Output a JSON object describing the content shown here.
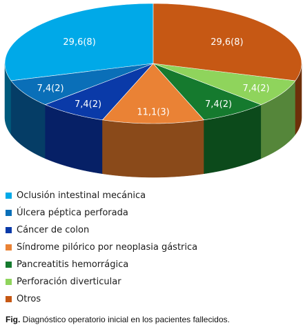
{
  "chart_data": {
    "type": "pie",
    "categories": [
      "Oclusión intestinal mecánica",
      "Úlcera péptica perforada",
      "Cáncer de colon",
      "Síndrome pilórico por neoplasia gástrica",
      "Pancreatitis hemorrágica",
      "Perforación diverticular",
      "Otros"
    ],
    "values": [
      29.6,
      7.4,
      7.4,
      11.1,
      7.4,
      7.4,
      29.6
    ],
    "counts": [
      8,
      2,
      2,
      3,
      2,
      2,
      8
    ],
    "data_labels": [
      "29,6(8)",
      "7,4(2)",
      "7,4(2)",
      "11,1(3)",
      "7,4(2)",
      "7,4(2)",
      "29,6(8)"
    ],
    "colors": [
      "#00a9e8",
      "#0a6fb8",
      "#0a3aa8",
      "#ea8235",
      "#157a2e",
      "#8fd45c",
      "#c65814"
    ],
    "side_colors": [
      "#005a7c",
      "#053d66",
      "#062066",
      "#8a4a1a",
      "#0c4a1b",
      "#55863a",
      "#6e300a"
    ],
    "draw_order": [
      4,
      5,
      3,
      6,
      0,
      1,
      2
    ],
    "legend_placement": "bottom",
    "three_d": true
  },
  "caption": {
    "prefix": "Fig.",
    "text": " Diagnóstico operatorio inicial en los pacientes fallecidos."
  }
}
